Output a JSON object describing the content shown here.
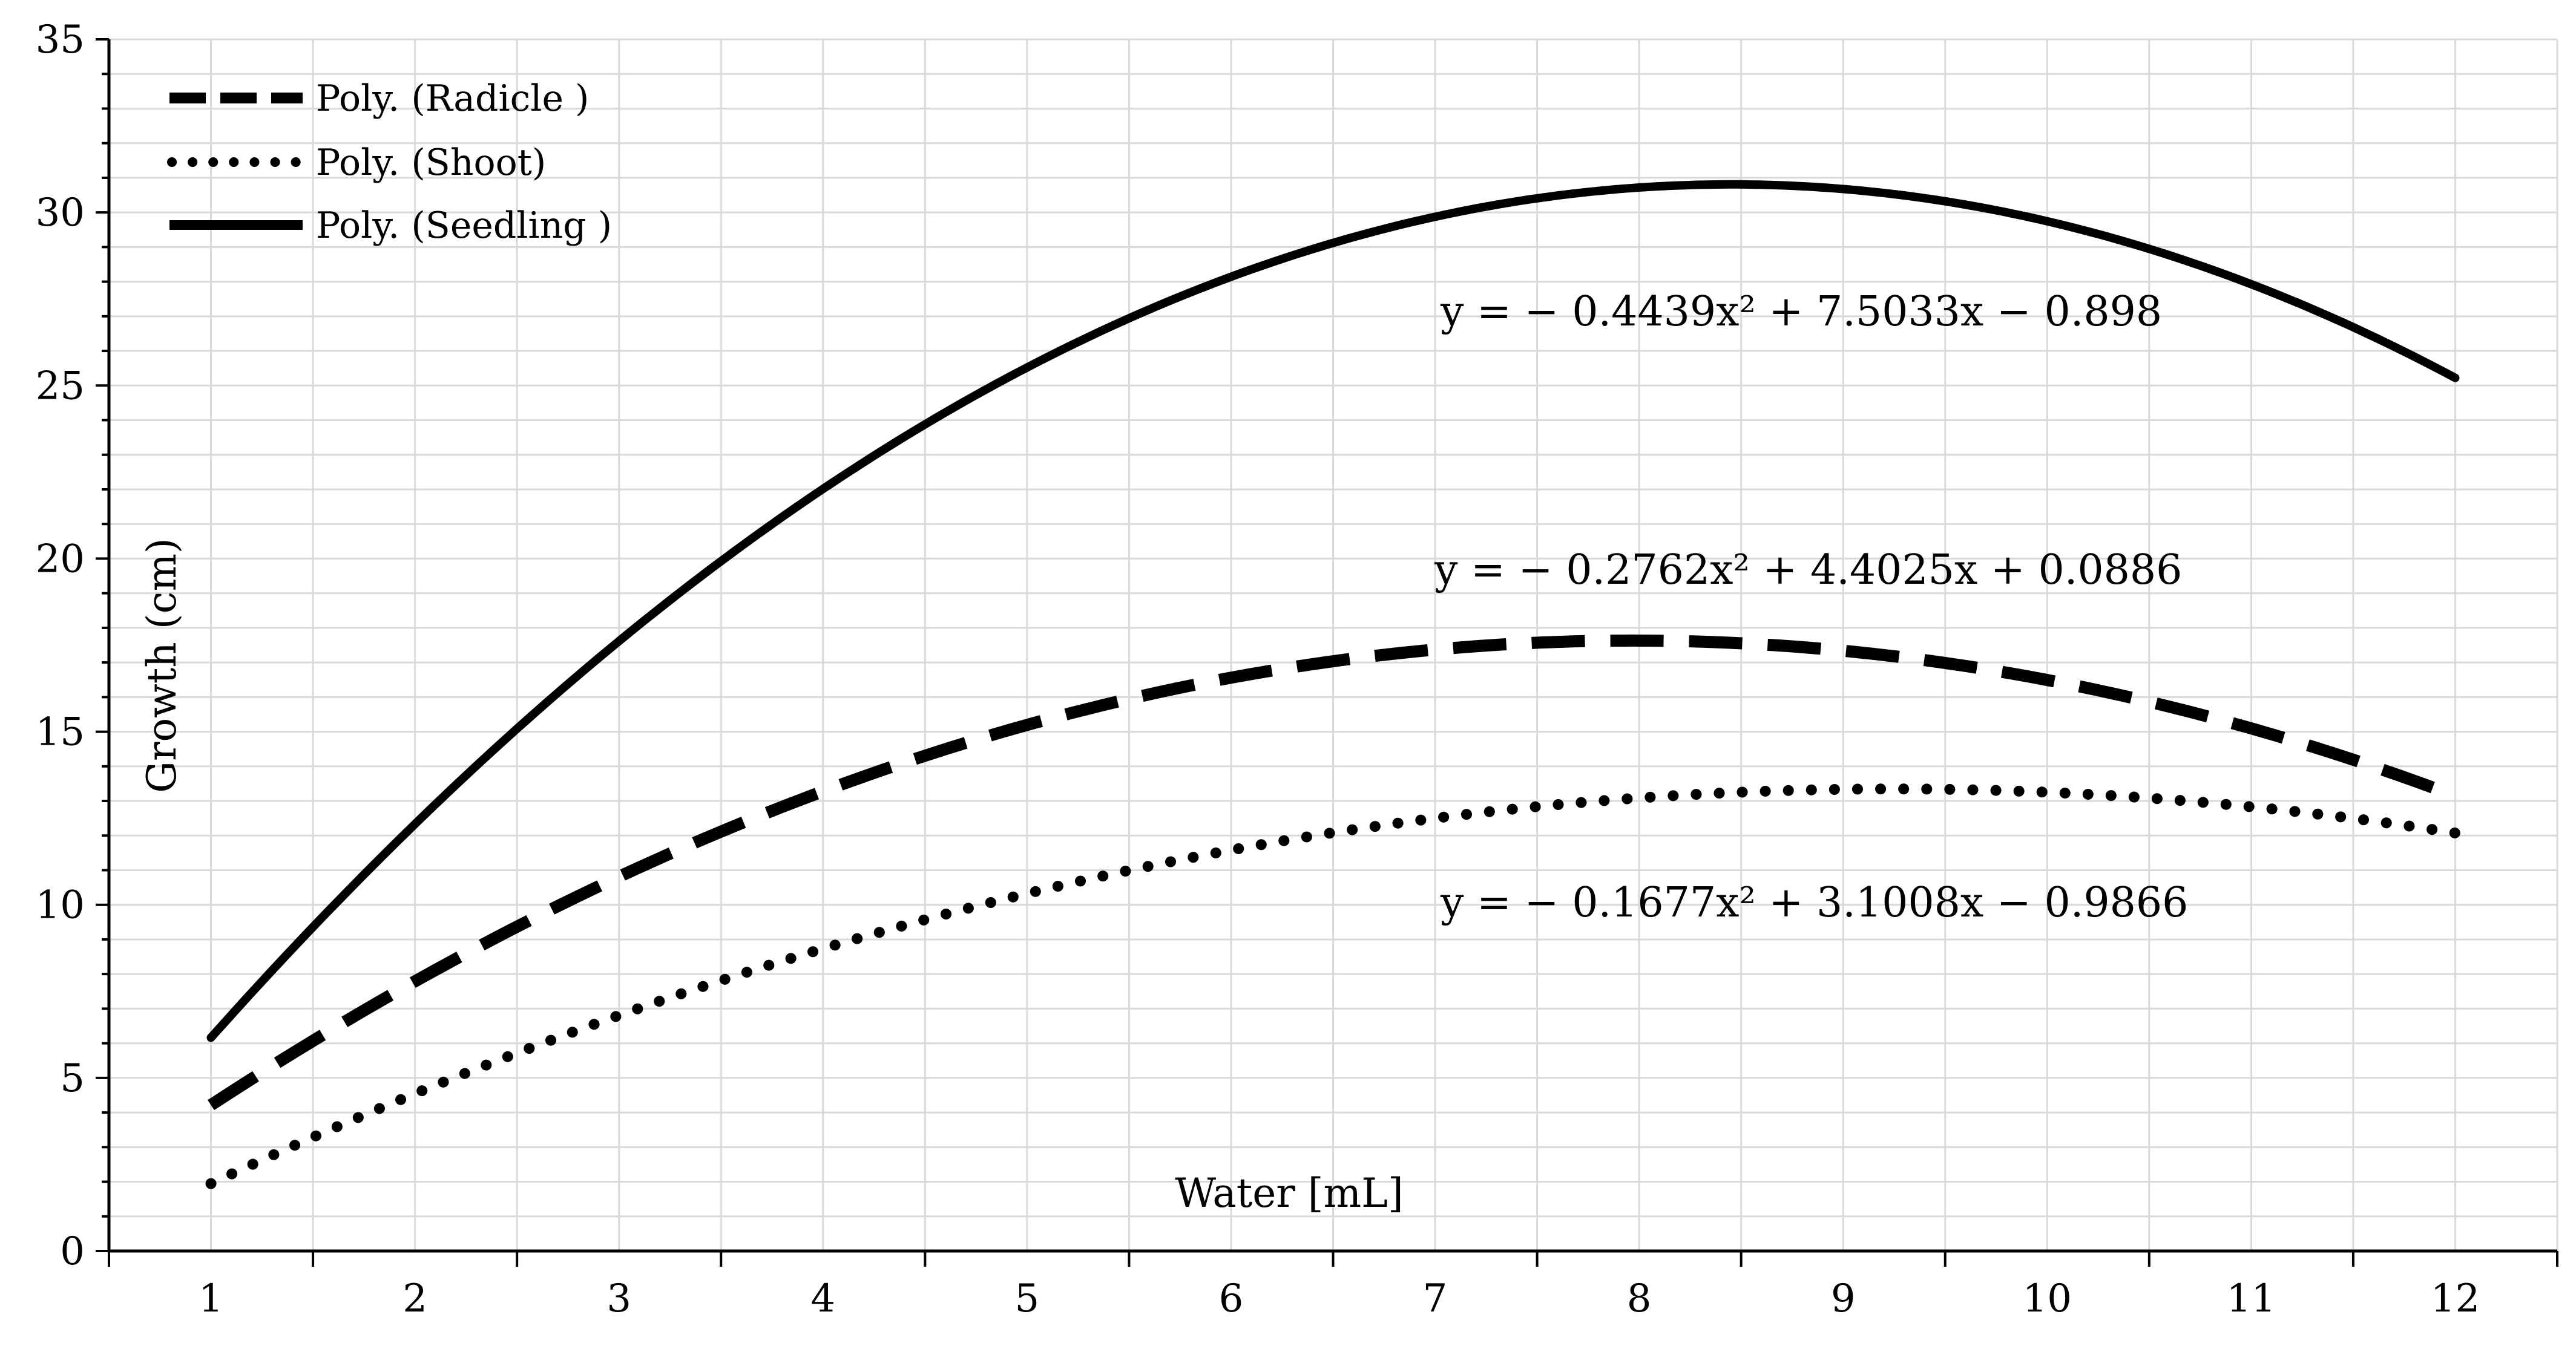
{
  "chart_data": {
    "type": "line",
    "title": "",
    "xlabel": "Water [mL]",
    "ylabel": "Growth (cm)",
    "xlim": [
      0.5,
      12.5
    ],
    "ylim": [
      0,
      35
    ],
    "x_ticks": [
      1,
      2,
      3,
      4,
      5,
      6,
      7,
      8,
      9,
      10,
      11,
      12
    ],
    "y_ticks": [
      0,
      5,
      10,
      15,
      20,
      25,
      30,
      35
    ],
    "grid": true,
    "legend_position": "top-left",
    "series": [
      {
        "name": "Poly. (Radicle )",
        "style": "dashed",
        "color": "#000000",
        "a": -0.2762,
        "b": 4.4025,
        "c": 0.0886,
        "equation": "y = − 0.2762x² + 4.4025x + 0.0886"
      },
      {
        "name": "Poly. (Shoot)",
        "style": "dotted",
        "color": "#000000",
        "a": -0.1677,
        "b": 3.1008,
        "c": -0.9866,
        "equation": "y = − 0.1677x² + 3.1008x − 0.9866"
      },
      {
        "name": "Poly. (Seedling )",
        "style": "solid",
        "color": "#000000",
        "a": -0.4439,
        "b": 7.5033,
        "c": -0.898,
        "equation": "y = − 0.4439x² + 7.5033x − 0.898"
      }
    ]
  }
}
